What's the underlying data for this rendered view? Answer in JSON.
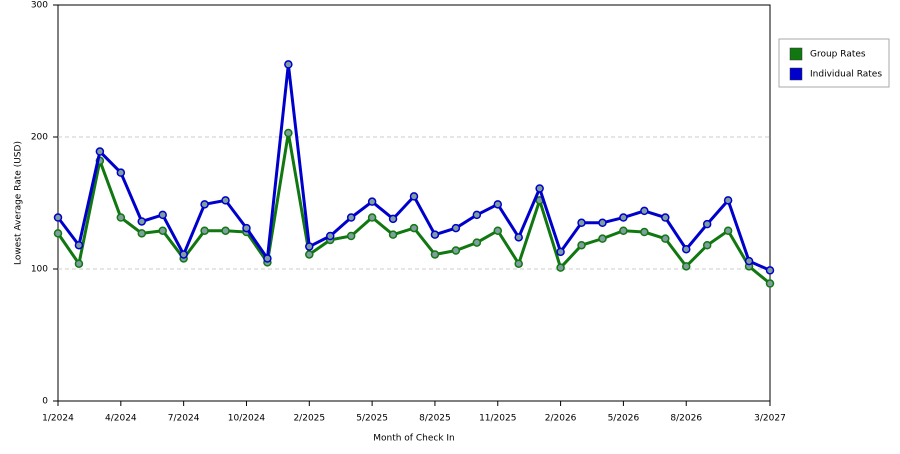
{
  "chart_data": {
    "type": "line",
    "x_label": "Month of Check In",
    "y_label": "Lowest Average Rate (USD)",
    "categories": [
      "1/2024",
      null,
      null,
      "4/2024",
      null,
      null,
      "7/2024",
      null,
      null,
      "10/2024",
      null,
      null,
      "2/2025",
      null,
      null,
      "5/2025",
      null,
      null,
      "8/2025",
      null,
      null,
      "11/2025",
      null,
      null,
      "2/2026",
      null,
      null,
      "5/2026",
      null,
      null,
      "8/2026",
      null,
      null,
      null,
      "3/2027"
    ],
    "series": [
      {
        "name": "Group Rates",
        "color": "#117711",
        "values": [
          127,
          104,
          182,
          139,
          127,
          129,
          108,
          129,
          129,
          128,
          105,
          203,
          111,
          122,
          125,
          139,
          126,
          131,
          111,
          114,
          120,
          129,
          104,
          152,
          101,
          118,
          123,
          129,
          128,
          123,
          102,
          118,
          129,
          102,
          89
        ]
      },
      {
        "name": "Individual Rates",
        "color": "#0000cc",
        "values": [
          139,
          118,
          189,
          173,
          136,
          141,
          111,
          149,
          152,
          131,
          108,
          255,
          117,
          125,
          139,
          151,
          138,
          155,
          126,
          131,
          141,
          149,
          124,
          161,
          113,
          135,
          135,
          139,
          144,
          139,
          115,
          134,
          152,
          106,
          99
        ]
      }
    ],
    "ylim": [
      0,
      300
    ],
    "yticks": [
      0,
      100,
      200,
      300
    ],
    "grid": true,
    "legend": "right"
  }
}
